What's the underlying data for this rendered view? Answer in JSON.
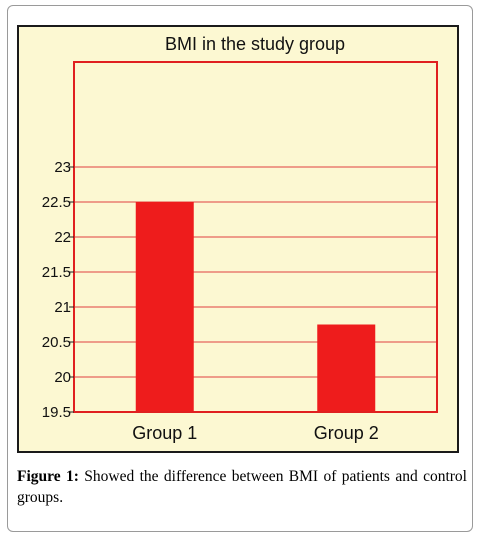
{
  "chart_data": {
    "type": "bar",
    "title": "BMI in the study group",
    "categories": [
      "Group 1",
      "Group 2"
    ],
    "values": [
      22.5,
      20.75
    ],
    "ylim": [
      19.5,
      24.5
    ],
    "yticks": [
      19.5,
      20,
      20.5,
      21,
      21.5,
      22,
      22.5,
      23
    ],
    "ytick_labels": [
      "19.5",
      "20",
      "20.5",
      "21",
      "21.5",
      "22",
      "22.5",
      "23"
    ],
    "xlabel": "",
    "ylabel": "",
    "grid": true,
    "colors": {
      "bar": "#ee1c1c",
      "grid": "#e04040",
      "plot_border": "#e02020",
      "background": "#fcf8d2"
    }
  },
  "caption": {
    "label": "Figure 1:",
    "text": "Showed the difference between BMI of patients and control groups."
  }
}
